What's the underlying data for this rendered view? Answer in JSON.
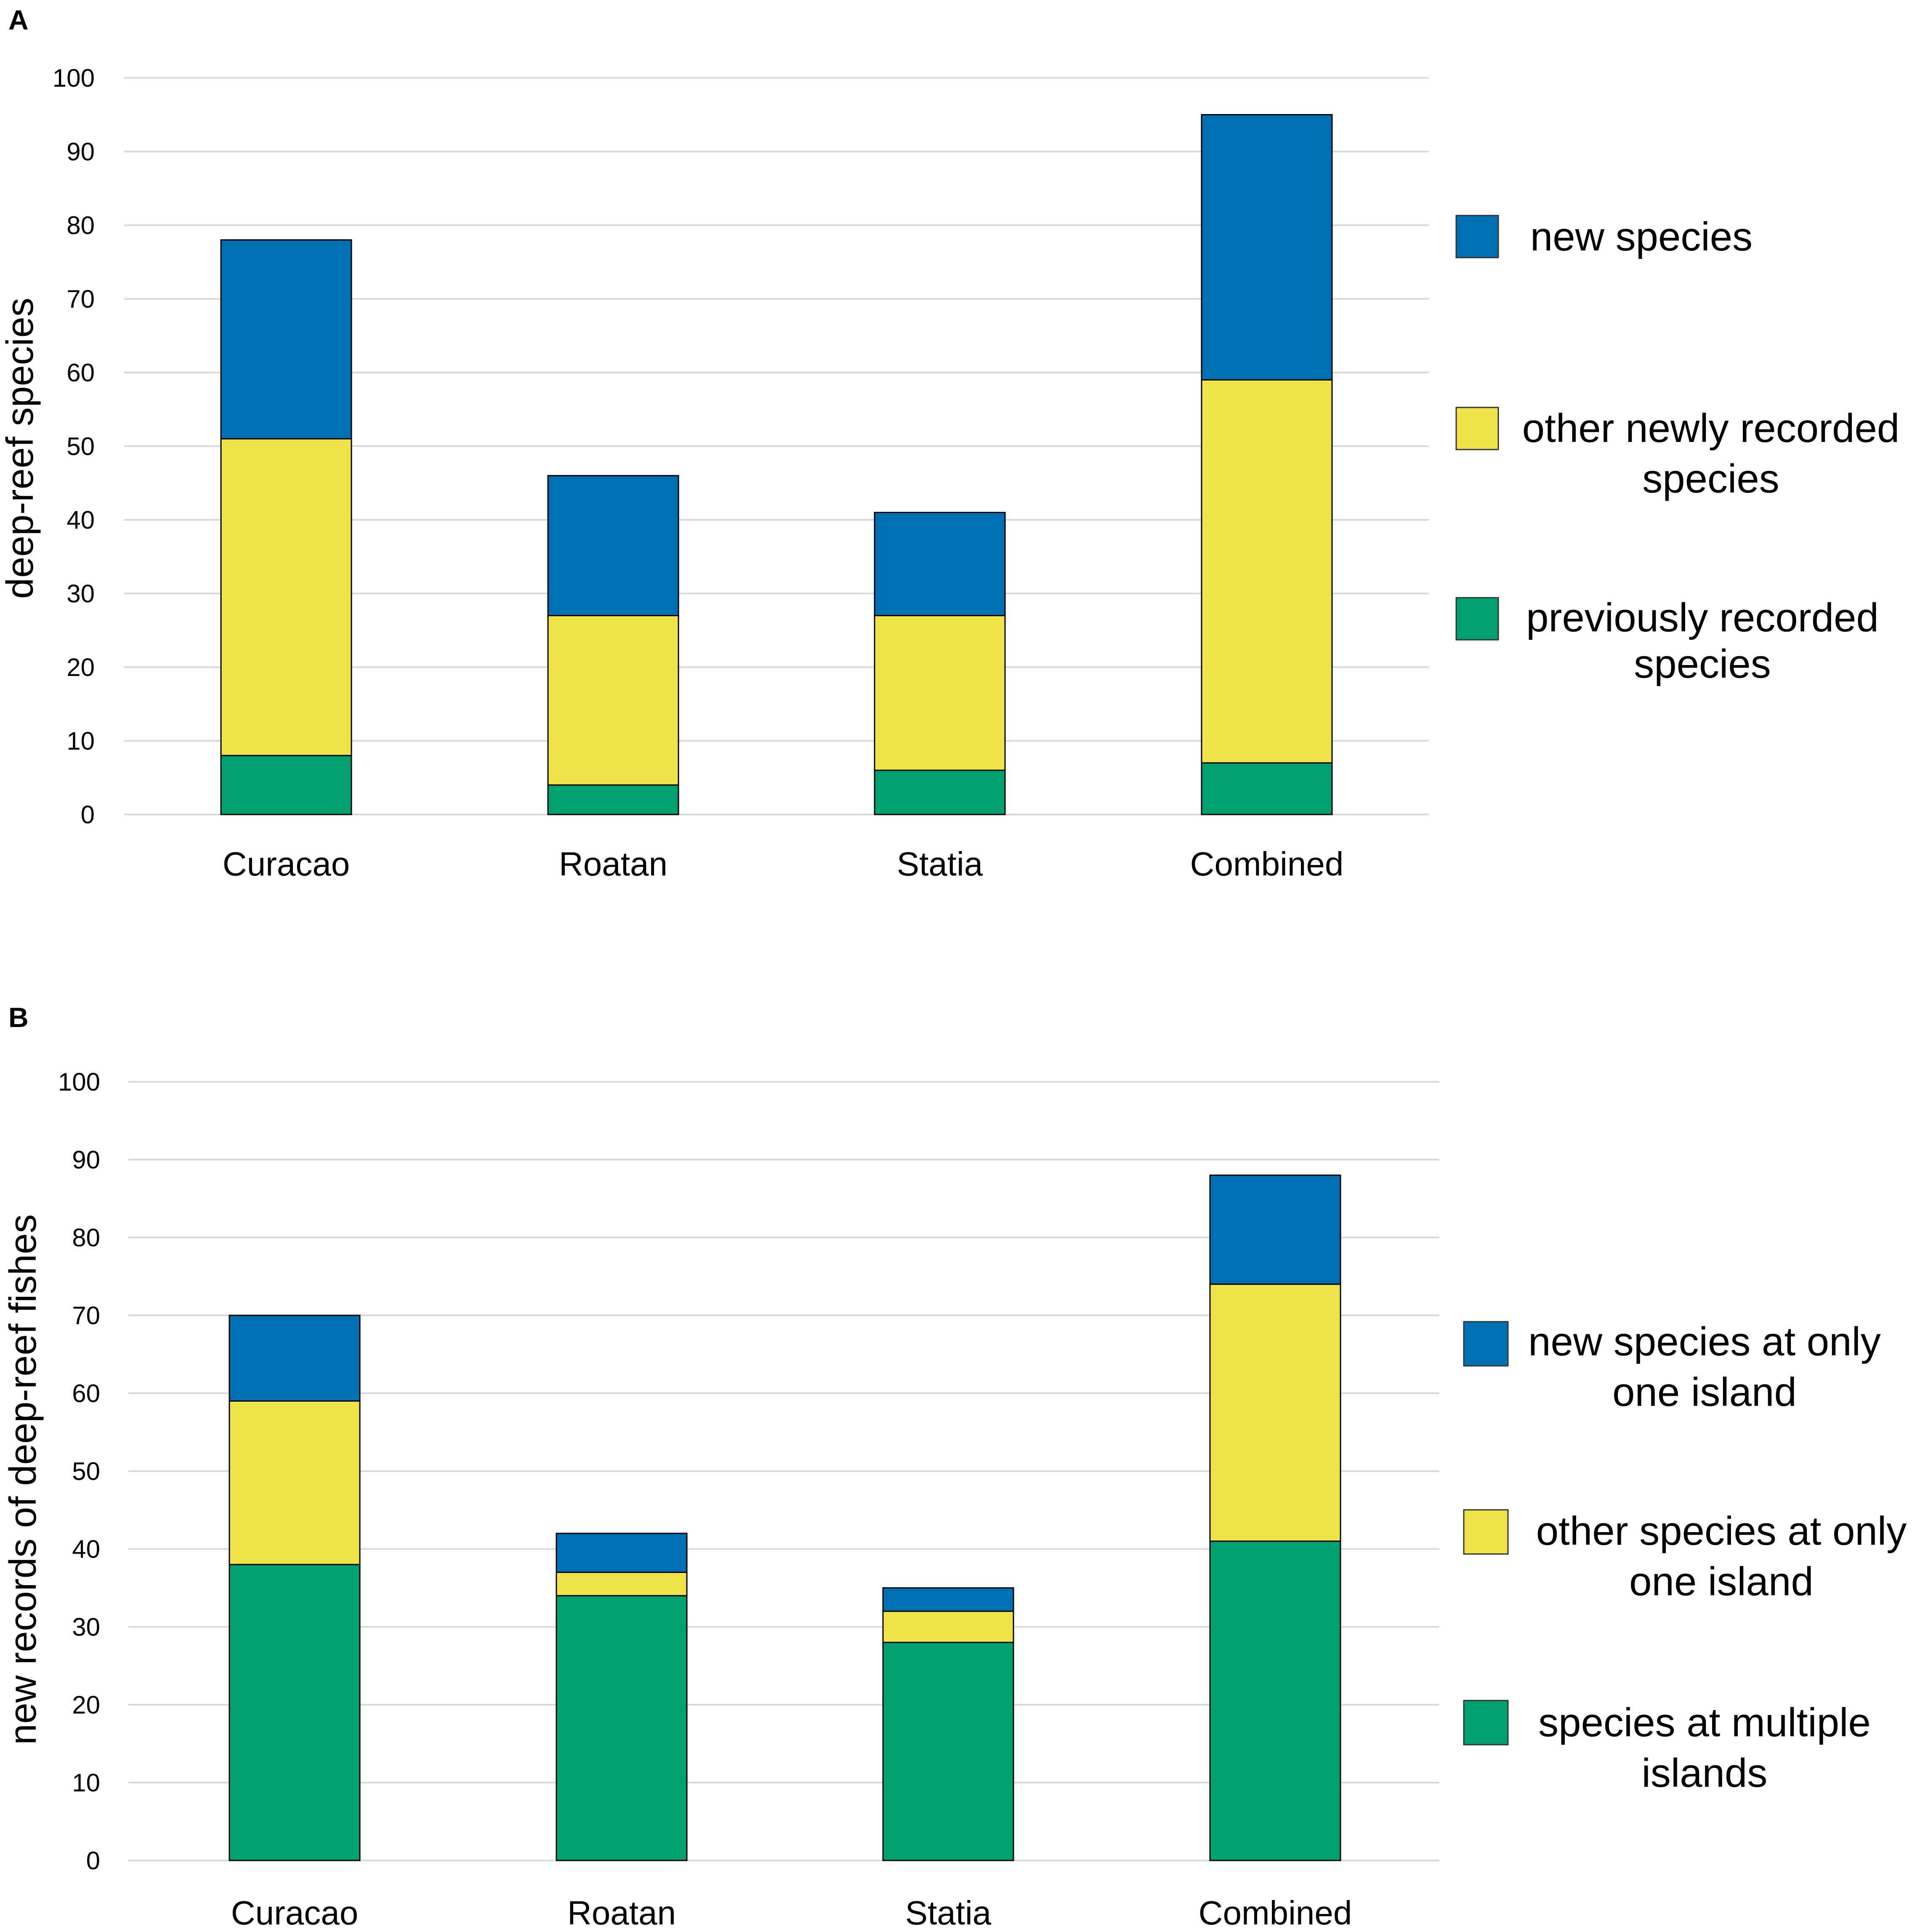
{
  "colors": {
    "blue": "#0070b4",
    "yellow": "#efe347",
    "green": "#02a070",
    "gridline": "#d9d9d9"
  },
  "chart_data": [
    {
      "type": "bar",
      "stacked": true,
      "panel_label": "A",
      "title": "",
      "xlabel": "",
      "ylabel": "deep-reef species",
      "ylim": [
        0,
        100
      ],
      "yticks": [
        "0",
        "10",
        "20",
        "30",
        "40",
        "50",
        "60",
        "70",
        "80",
        "90",
        "100"
      ],
      "categories": [
        "Curacao",
        "Roatan",
        "Statia",
        "Combined"
      ],
      "grid": true,
      "legend_position": "right",
      "series": [
        {
          "name": "previously recorded species",
          "legend_lines": [
            "previously recorded",
            "species"
          ],
          "color": "#02a070",
          "values": [
            8,
            4,
            6,
            7
          ]
        },
        {
          "name": "other newly recorded species",
          "legend_lines": [
            "other newly recorded",
            "species"
          ],
          "color": "#efe347",
          "values": [
            43,
            23,
            21,
            52
          ]
        },
        {
          "name": "new species",
          "legend_lines": [
            "new species"
          ],
          "color": "#0070b4",
          "values": [
            27,
            19,
            14,
            36
          ]
        }
      ]
    },
    {
      "type": "bar",
      "stacked": true,
      "panel_label": "B",
      "title": "",
      "xlabel": "",
      "ylabel": "new  records of deep-reef fishes",
      "ylim": [
        0,
        100
      ],
      "yticks": [
        "0",
        "10",
        "20",
        "30",
        "40",
        "50",
        "60",
        "70",
        "80",
        "90",
        "100"
      ],
      "categories": [
        "Curacao",
        "Roatan",
        "Statia",
        "Combined"
      ],
      "grid": true,
      "legend_position": "right",
      "series": [
        {
          "name": "species at multiple islands",
          "legend_lines": [
            "species at multiple",
            "islands"
          ],
          "color": "#02a070",
          "values": [
            38,
            34,
            28,
            41
          ]
        },
        {
          "name": "other species at only one island",
          "legend_lines": [
            "other species at only",
            "one island"
          ],
          "color": "#efe347",
          "values": [
            21,
            3,
            4,
            33
          ]
        },
        {
          "name": "new species at only one island",
          "legend_lines": [
            "new species at only",
            "one island"
          ],
          "color": "#0070b4",
          "values": [
            11,
            5,
            3,
            14
          ]
        }
      ]
    }
  ]
}
